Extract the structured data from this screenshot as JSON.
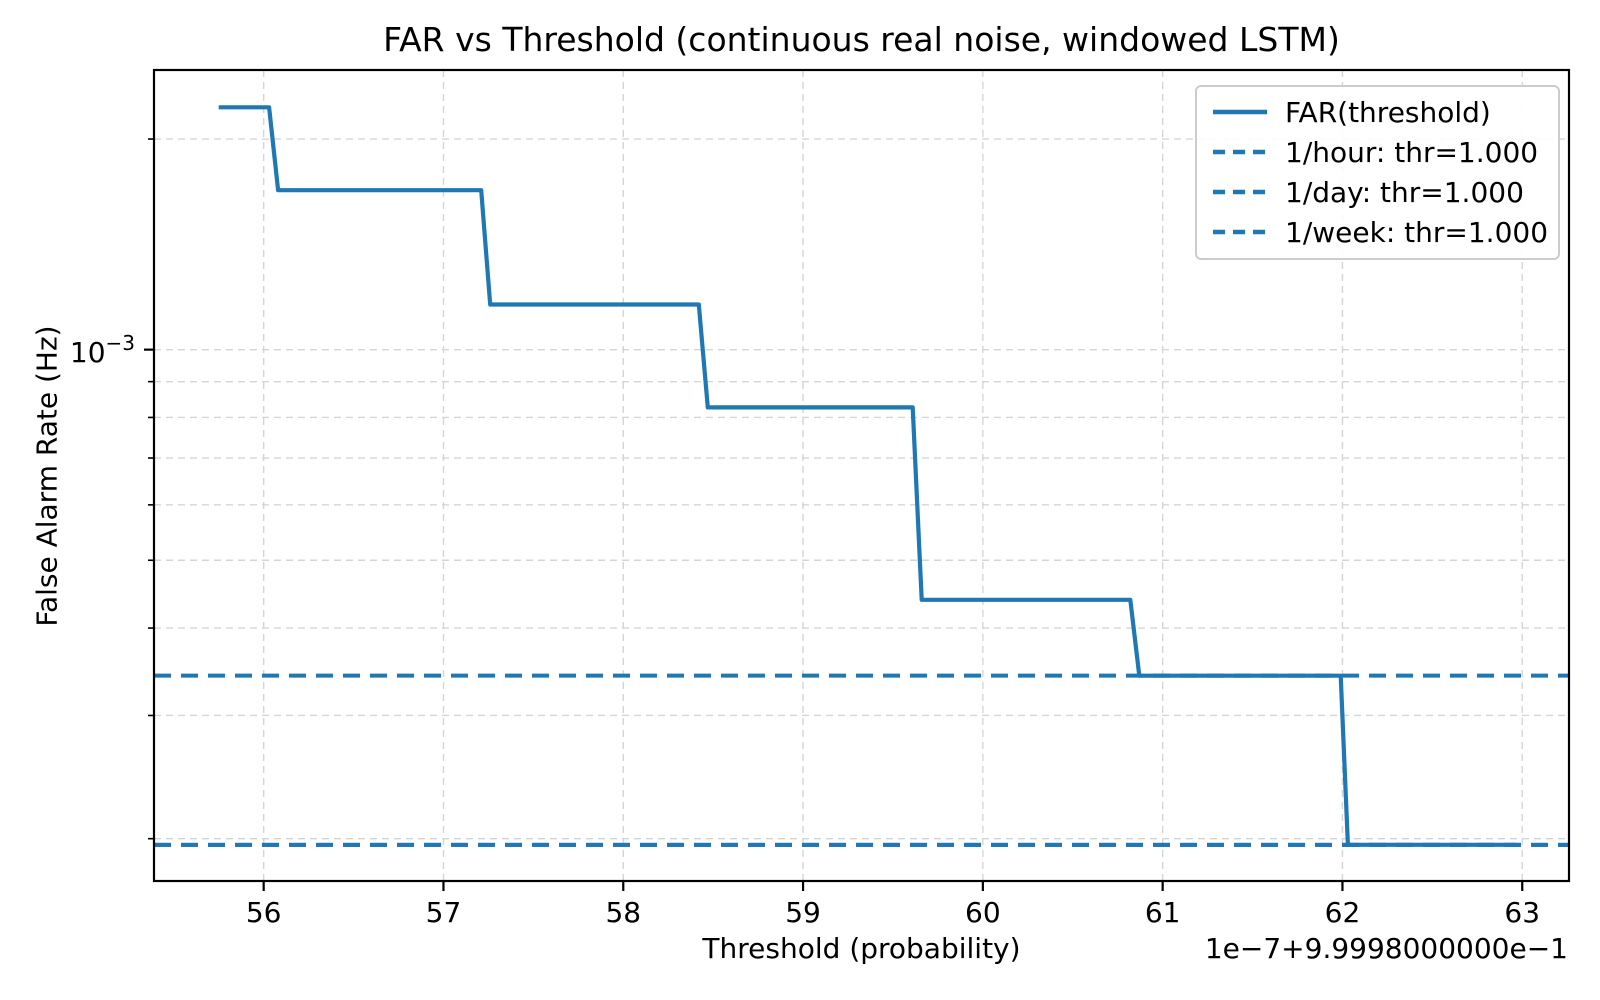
{
  "chart_data": {
    "type": "line",
    "title": "FAR vs Threshold (continuous real noise, windowed LSTM)",
    "xlabel": "Threshold (probability)",
    "ylabel": "False Alarm Rate (Hz)",
    "x_offset_text": "1e−7+9.9998000000e−1",
    "x_ticks": [
      56,
      57,
      58,
      59,
      60,
      61,
      62,
      63
    ],
    "xlim": [
      55.39,
      63.26
    ],
    "yscale": "log",
    "ylim": [
      0.000174,
      0.00251
    ],
    "grid": true,
    "legend_position": "upper right",
    "y_major_tick": {
      "value": 0.001,
      "label_base": "10",
      "label_exponent": "−3"
    },
    "y_minor_gridline_values": [
      0.002,
      0.0009,
      0.0008,
      0.0007,
      0.0006,
      0.0005,
      0.0004,
      0.0003,
      0.0002
    ],
    "series": [
      {
        "name": "FAR(threshold)",
        "style": "solid",
        "step_points": [
          [
            55.75,
            0.00222
          ],
          [
            56.03,
            0.00222
          ],
          [
            56.08,
            0.00169
          ],
          [
            57.21,
            0.00169
          ],
          [
            57.26,
            0.00116
          ],
          [
            58.42,
            0.00116
          ],
          [
            58.47,
            0.000827
          ],
          [
            59.61,
            0.000827
          ],
          [
            59.66,
            0.000439
          ],
          [
            60.82,
            0.000439
          ],
          [
            60.87,
            0.000342
          ],
          [
            61.99,
            0.000342
          ],
          [
            62.03,
            0.000196
          ],
          [
            62.97,
            0.000196
          ]
        ]
      }
    ],
    "threshold_lines": [
      {
        "name": "1/hour",
        "label": "1/hour: thr=1.000",
        "far_hz": 0.000342
      },
      {
        "name": "1/day",
        "label": "1/day: thr=1.000",
        "far_hz": 0.000196
      },
      {
        "name": "1/week",
        "label": "1/week: thr=1.000",
        "far_hz": 0.000196
      }
    ]
  },
  "legend": {
    "entries": [
      {
        "label": "FAR(threshold)",
        "style": "solid"
      },
      {
        "label": "1/hour: thr=1.000",
        "style": "dashed"
      },
      {
        "label": "1/day: thr=1.000",
        "style": "dashed"
      },
      {
        "label": "1/week: thr=1.000",
        "style": "dashed"
      }
    ]
  },
  "colors": {
    "line": "#1f77b4",
    "grid": "#d5d5d5",
    "axis": "#000000",
    "background": "#ffffff"
  }
}
